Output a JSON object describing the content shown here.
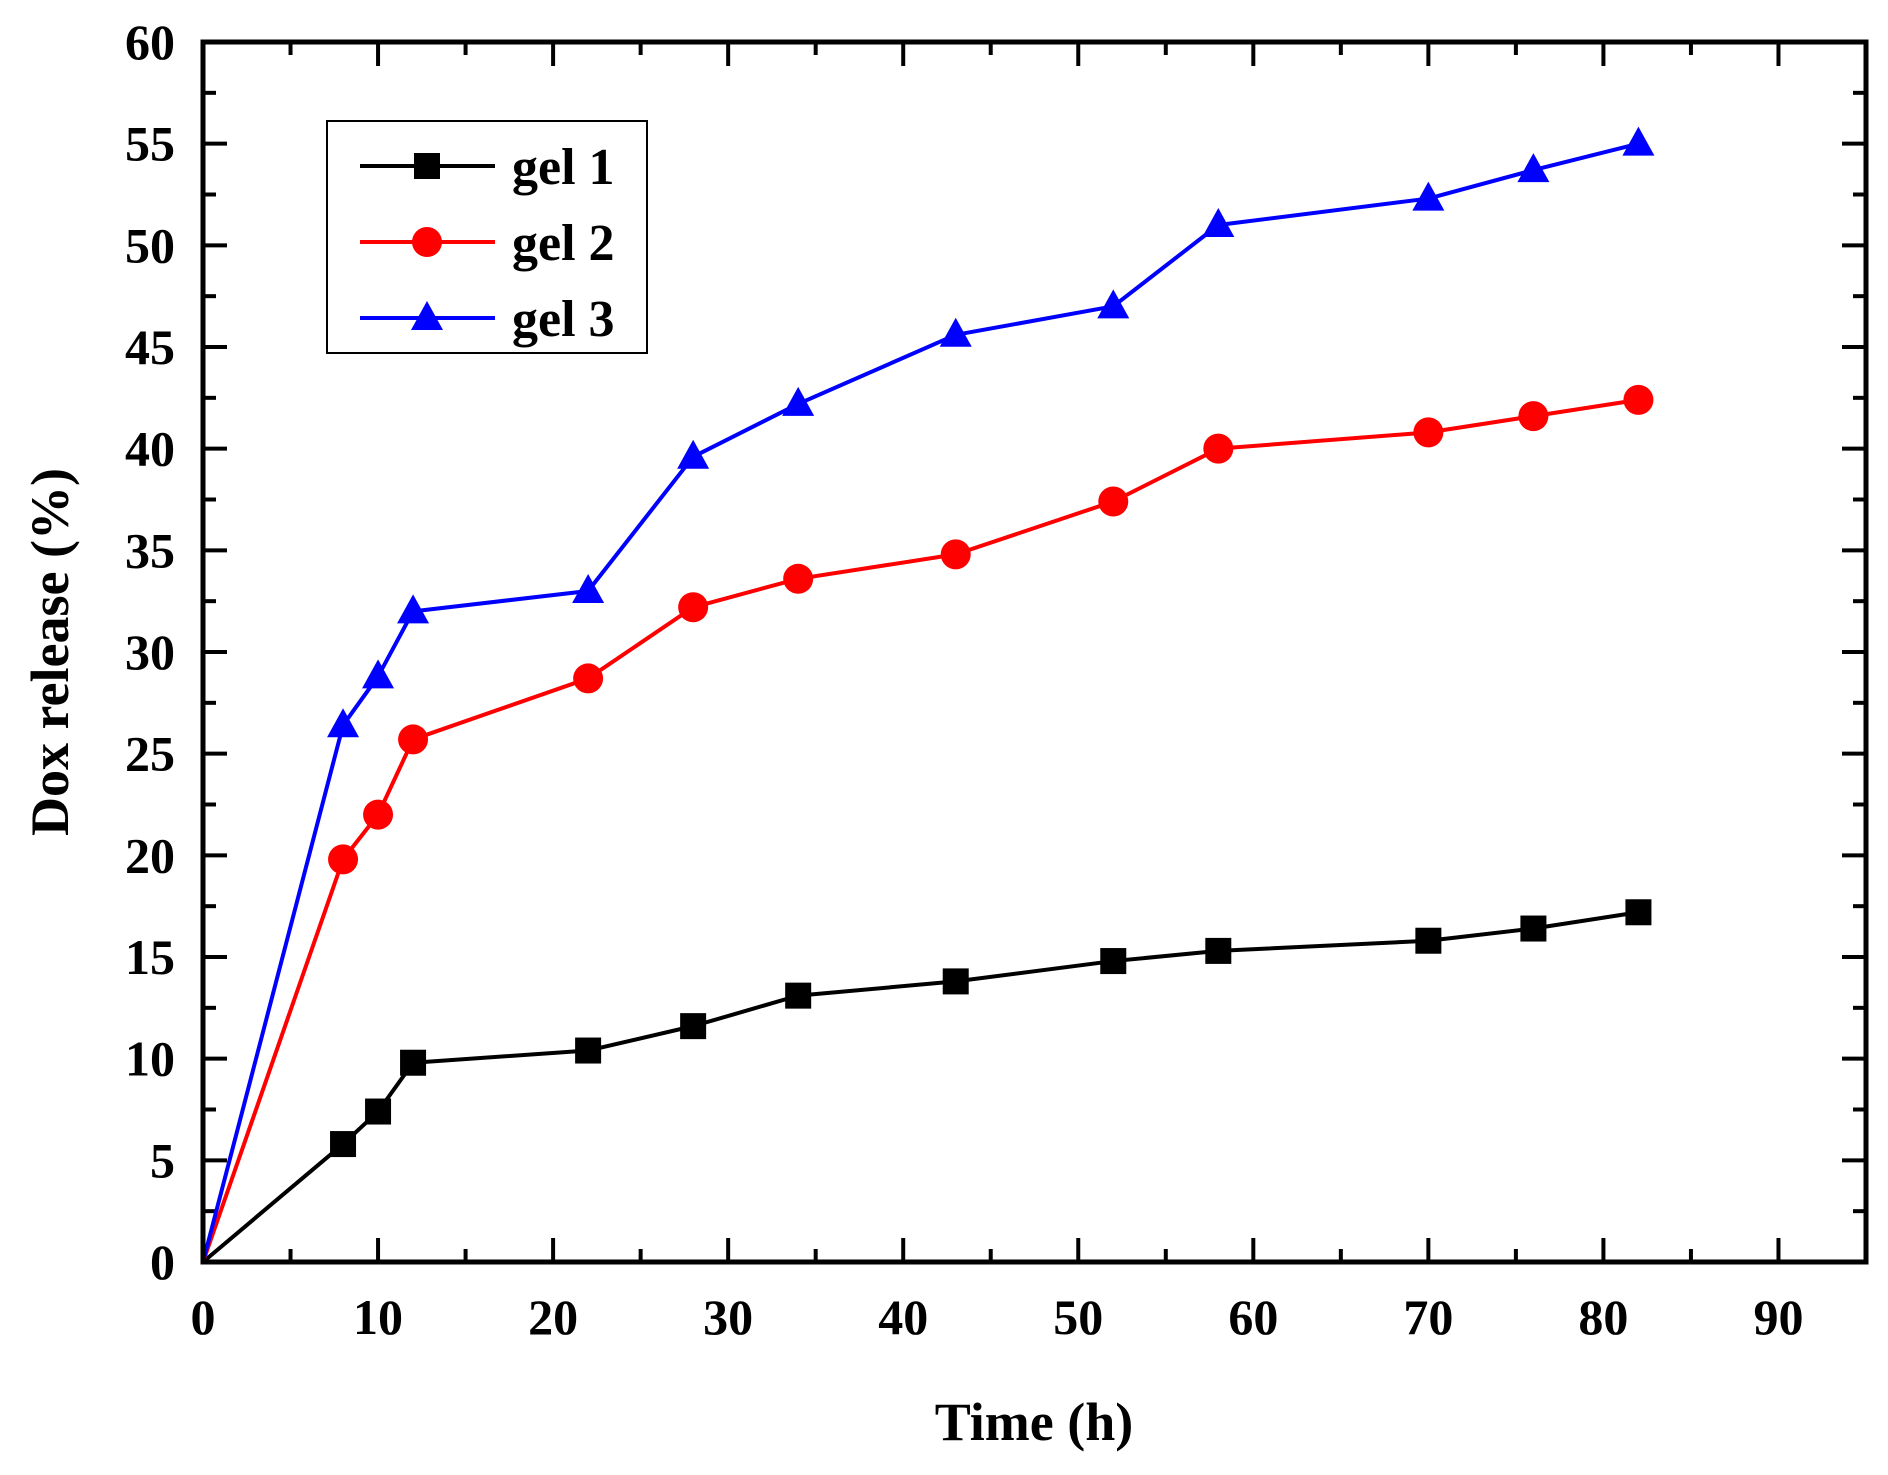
{
  "chart_data": {
    "type": "line",
    "title": "",
    "xlabel": "Time (h)",
    "ylabel": "Dox release (%)",
    "xlim": [
      0,
      95
    ],
    "ylim": [
      0,
      60
    ],
    "x_ticks": [
      0,
      10,
      20,
      30,
      40,
      50,
      60,
      70,
      80,
      90
    ],
    "y_ticks": [
      0,
      5,
      10,
      15,
      20,
      25,
      30,
      35,
      40,
      45,
      50,
      55,
      60
    ],
    "legend_position": "top-left",
    "series": [
      {
        "name": "gel 1",
        "color": "#000000",
        "marker": "square",
        "x": [
          0,
          8,
          10,
          12,
          22,
          28,
          34,
          43,
          52,
          58,
          70,
          76,
          82
        ],
        "y": [
          0,
          5.8,
          7.4,
          9.8,
          10.4,
          11.6,
          13.1,
          13.8,
          14.8,
          15.3,
          15.8,
          16.4,
          17.2
        ]
      },
      {
        "name": "gel 2",
        "color": "#ff0000",
        "marker": "circle",
        "x": [
          0,
          8,
          10,
          12,
          22,
          28,
          34,
          43,
          52,
          58,
          70,
          76,
          82
        ],
        "y": [
          0,
          19.8,
          22.0,
          25.7,
          28.7,
          32.2,
          33.6,
          34.8,
          37.4,
          40.0,
          40.8,
          41.6,
          42.4
        ]
      },
      {
        "name": "gel 3",
        "color": "#0000ff",
        "marker": "triangle",
        "x": [
          0,
          8,
          10,
          12,
          22,
          28,
          34,
          43,
          52,
          58,
          70,
          76,
          82
        ],
        "y": [
          0,
          26.4,
          28.8,
          32.0,
          33.0,
          39.6,
          42.2,
          45.6,
          47.0,
          51.0,
          52.3,
          53.7,
          55.0
        ]
      }
    ]
  }
}
